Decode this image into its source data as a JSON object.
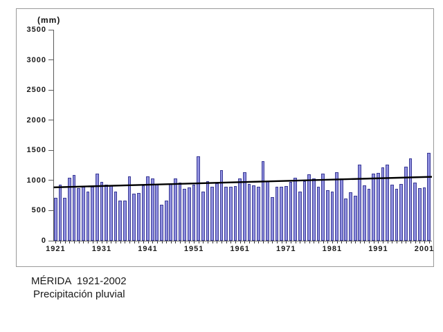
{
  "figure": {
    "unit_label": "(mm)",
    "caption_line1": "MÉRIDA  1921-2002",
    "caption_line2": "Precipitación pluvial"
  },
  "chart_data": {
    "type": "bar",
    "title": "MÉRIDA 1921-2002",
    "subtitle": "Precipitación pluvial",
    "ylabel": "(mm)",
    "xlabel": "",
    "ylim": [
      0,
      3500
    ],
    "ytick_interval": 500,
    "y_tick_labels": [
      "0",
      "500",
      "1000",
      "1500",
      "2000",
      "2500",
      "3000",
      "3500"
    ],
    "x_tick_years": [
      1921,
      1931,
      1941,
      1951,
      1961,
      1971,
      1981,
      1991,
      2001
    ],
    "grid": false,
    "legend": false,
    "bar_fill_color": "#8f8fde",
    "bar_border_color": "#3a3a96",
    "axis_color": "#5a5a5a",
    "years": [
      1921,
      1922,
      1923,
      1924,
      1925,
      1926,
      1927,
      1928,
      1929,
      1930,
      1931,
      1932,
      1933,
      1934,
      1935,
      1936,
      1937,
      1938,
      1939,
      1940,
      1941,
      1942,
      1943,
      1944,
      1945,
      1946,
      1947,
      1948,
      1949,
      1950,
      1951,
      1952,
      1953,
      1954,
      1955,
      1956,
      1957,
      1958,
      1959,
      1960,
      1961,
      1962,
      1963,
      1964,
      1965,
      1966,
      1967,
      1968,
      1969,
      1970,
      1971,
      1972,
      1973,
      1974,
      1975,
      1976,
      1977,
      1978,
      1979,
      1980,
      1981,
      1982,
      1983,
      1984,
      1985,
      1986,
      1987,
      1988,
      1989,
      1990,
      1991,
      1992,
      1993,
      1994,
      1995,
      1996,
      1997,
      1998,
      1999,
      2000,
      2001,
      2002
    ],
    "values": [
      715,
      930,
      710,
      1040,
      1095,
      875,
      890,
      810,
      895,
      1115,
      980,
      930,
      915,
      815,
      670,
      670,
      1065,
      780,
      790,
      915,
      1065,
      1035,
      940,
      595,
      670,
      940,
      1030,
      960,
      855,
      885,
      925,
      1400,
      810,
      990,
      900,
      950,
      1165,
      895,
      895,
      905,
      1030,
      1140,
      940,
      915,
      895,
      1320,
      990,
      725,
      895,
      895,
      905,
      980,
      1045,
      820,
      990,
      1100,
      1030,
      895,
      1115,
      840,
      820,
      1140,
      1030,
      700,
      800,
      750,
      1260,
      915,
      855,
      1115,
      1130,
      1215,
      1260,
      935,
      860,
      940,
      1230,
      1360,
      960,
      875,
      880,
      1460
    ],
    "trend_line": {
      "type": "linear",
      "start_value": 885,
      "end_value": 1060,
      "color": "#000000"
    }
  }
}
